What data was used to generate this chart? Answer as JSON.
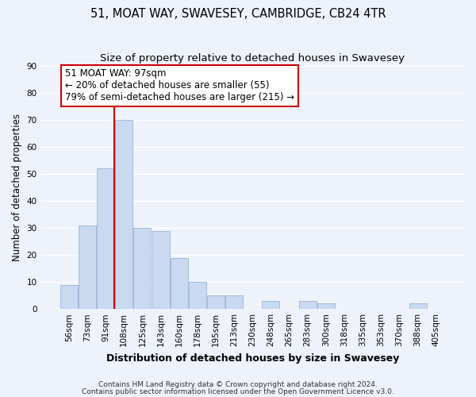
{
  "title": "51, MOAT WAY, SWAVESEY, CAMBRIDGE, CB24 4TR",
  "subtitle": "Size of property relative to detached houses in Swavesey",
  "xlabel": "Distribution of detached houses by size in Swavesey",
  "ylabel": "Number of detached properties",
  "bar_labels": [
    "56sqm",
    "73sqm",
    "91sqm",
    "108sqm",
    "125sqm",
    "143sqm",
    "160sqm",
    "178sqm",
    "195sqm",
    "213sqm",
    "230sqm",
    "248sqm",
    "265sqm",
    "283sqm",
    "300sqm",
    "318sqm",
    "335sqm",
    "353sqm",
    "370sqm",
    "388sqm",
    "405sqm"
  ],
  "bar_values": [
    9,
    31,
    52,
    70,
    30,
    29,
    19,
    10,
    5,
    5,
    0,
    3,
    0,
    3,
    2,
    0,
    0,
    0,
    0,
    2,
    0
  ],
  "bar_color": "#c9d9f0",
  "bar_edge_color": "#9ab4d8",
  "vline_color": "#cc0000",
  "ylim": [
    0,
    90
  ],
  "yticks": [
    0,
    10,
    20,
    30,
    40,
    50,
    60,
    70,
    80,
    90
  ],
  "annotation_line1": "51 MOAT WAY: 97sqm",
  "annotation_line2": "← 20% of detached houses are smaller (55)",
  "annotation_line3": "79% of semi-detached houses are larger (215) →",
  "annotation_box_color": "#ffffff",
  "annotation_box_edge": "#cc0000",
  "footer1": "Contains HM Land Registry data © Crown copyright and database right 2024.",
  "footer2": "Contains public sector information licensed under the Open Government Licence v3.0.",
  "background_color": "#eef2fb",
  "grid_color": "#ffffff",
  "title_fontsize": 10.5,
  "subtitle_fontsize": 9.5,
  "ylabel_fontsize": 8.5,
  "xlabel_fontsize": 9,
  "tick_fontsize": 7.5,
  "annotation_fontsize": 8.5,
  "footer_fontsize": 6.5
}
